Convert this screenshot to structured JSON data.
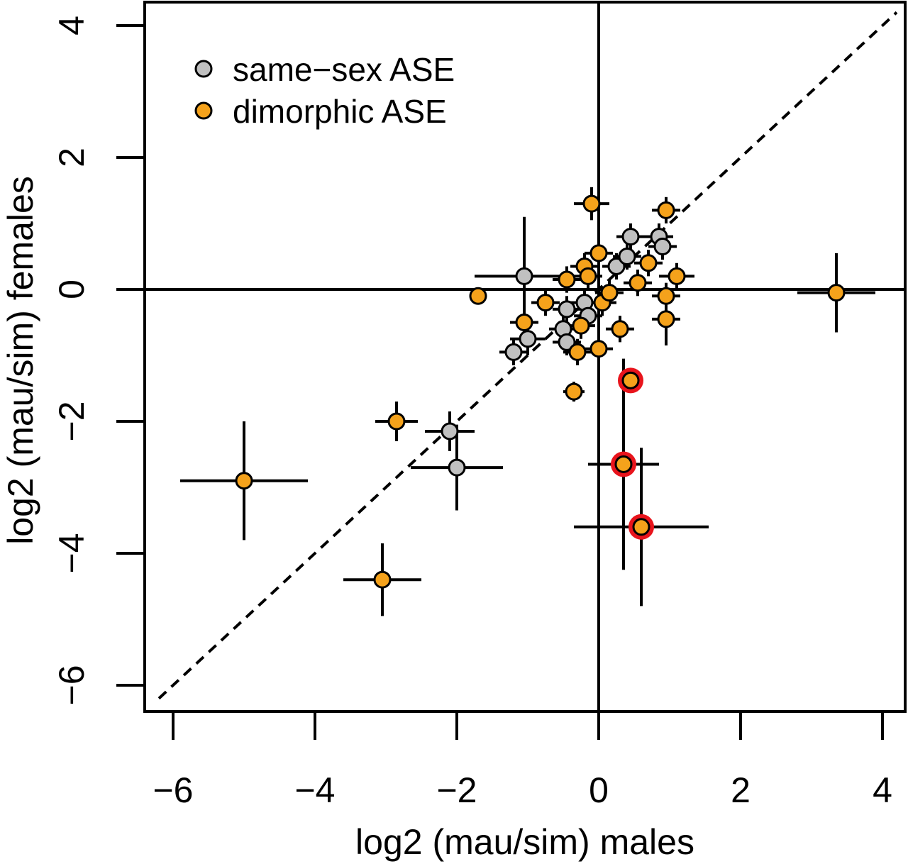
{
  "chart_data": {
    "type": "scatter",
    "title": "",
    "xlabel": "log2 (mau/sim) males",
    "ylabel": "log2 (mau/sim) females",
    "xlim": [
      -6.4,
      4.4
    ],
    "ylim": [
      -6.3,
      4.4
    ],
    "x_ticks": [
      -6,
      -4,
      -2,
      0,
      2,
      4
    ],
    "y_ticks": [
      -6,
      -4,
      -2,
      0,
      2,
      4
    ],
    "x_tick_labels": [
      "−6",
      "−4",
      "−2",
      "0",
      "2",
      "4"
    ],
    "y_tick_labels": [
      "−6",
      "−4",
      "−2",
      "0",
      "2",
      "4"
    ],
    "reference_lines": [
      "x = 0",
      "y = 0",
      "y = x (dashed)"
    ],
    "grid": false,
    "legend_position": "top-left",
    "highlight_color": "#e8141c",
    "series": [
      {
        "name": "same−sex ASE",
        "color": "#c0c0c0",
        "points": [
          {
            "x": -2.1,
            "y": -2.15,
            "xerr": 0.35,
            "yerr": 0.3
          },
          {
            "x": -2.0,
            "y": -2.7,
            "xerr": 0.65,
            "yerr": 0.65
          },
          {
            "x": -1.05,
            "y": 0.2,
            "xerr": 0.7,
            "yerr": 0.9
          },
          {
            "x": -1.0,
            "y": -0.75,
            "xerr": 0.25,
            "yerr": 0.25
          },
          {
            "x": -1.2,
            "y": -0.95,
            "xerr": 0.2,
            "yerr": 0.2
          },
          {
            "x": -0.45,
            "y": -0.3,
            "xerr": 0.2,
            "yerr": 0.2
          },
          {
            "x": -0.5,
            "y": -0.6,
            "xerr": 0.2,
            "yerr": 0.2
          },
          {
            "x": -0.45,
            "y": -0.8,
            "xerr": 0.2,
            "yerr": 0.2
          },
          {
            "x": -0.2,
            "y": -0.2,
            "xerr": 0.2,
            "yerr": 0.2
          },
          {
            "x": -0.15,
            "y": -0.4,
            "xerr": 0.2,
            "yerr": 0.2
          },
          {
            "x": 0.25,
            "y": 0.35,
            "xerr": 0.2,
            "yerr": 0.2
          },
          {
            "x": 0.45,
            "y": 0.8,
            "xerr": 0.2,
            "yerr": 0.2
          },
          {
            "x": 0.4,
            "y": 0.5,
            "xerr": 0.2,
            "yerr": 0.2
          },
          {
            "x": 0.85,
            "y": 0.8,
            "xerr": 0.2,
            "yerr": 0.2
          },
          {
            "x": 0.9,
            "y": 0.65,
            "xerr": 0.2,
            "yerr": 0.2
          }
        ]
      },
      {
        "name": "dimorphic ASE",
        "color": "#f5a21b",
        "points": [
          {
            "x": -5.0,
            "y": -2.9,
            "xerr": 0.9,
            "yerr": 0.9,
            "highlight": false
          },
          {
            "x": -3.05,
            "y": -4.4,
            "xerr": 0.55,
            "yerr": 0.55,
            "highlight": false
          },
          {
            "x": -2.85,
            "y": -2.0,
            "xerr": 0.3,
            "yerr": 0.3,
            "highlight": false
          },
          {
            "x": -1.7,
            "y": -0.1,
            "xerr": 0.1,
            "yerr": 0.1,
            "highlight": false
          },
          {
            "x": -1.05,
            "y": -0.5,
            "xerr": 0.2,
            "yerr": 0.2,
            "highlight": false
          },
          {
            "x": -0.75,
            "y": -0.2,
            "xerr": 0.2,
            "yerr": 0.2,
            "highlight": false
          },
          {
            "x": -0.45,
            "y": 0.15,
            "xerr": 0.2,
            "yerr": 0.2,
            "highlight": false
          },
          {
            "x": -0.2,
            "y": 0.35,
            "xerr": 0.2,
            "yerr": 0.2,
            "highlight": false
          },
          {
            "x": -0.15,
            "y": 0.2,
            "xerr": 0.2,
            "yerr": 0.2,
            "highlight": false
          },
          {
            "x": -0.25,
            "y": -0.55,
            "xerr": 0.2,
            "yerr": 0.2,
            "highlight": false
          },
          {
            "x": -0.3,
            "y": -0.95,
            "xerr": 0.2,
            "yerr": 0.2,
            "highlight": false
          },
          {
            "x": -0.35,
            "y": -1.55,
            "xerr": 0.15,
            "yerr": 0.15,
            "highlight": false
          },
          {
            "x": -0.1,
            "y": 1.3,
            "xerr": 0.25,
            "yerr": 0.25,
            "highlight": false
          },
          {
            "x": 0.0,
            "y": 0.55,
            "xerr": 0.2,
            "yerr": 0.2,
            "highlight": false
          },
          {
            "x": 0.0,
            "y": -0.9,
            "xerr": 0.2,
            "yerr": 0.2,
            "highlight": false
          },
          {
            "x": 0.05,
            "y": -0.2,
            "xerr": 0.2,
            "yerr": 0.2,
            "highlight": false
          },
          {
            "x": 0.15,
            "y": -0.05,
            "xerr": 0.2,
            "yerr": 0.2,
            "highlight": false
          },
          {
            "x": 0.3,
            "y": -0.6,
            "xerr": 0.2,
            "yerr": 0.2,
            "highlight": false
          },
          {
            "x": 0.55,
            "y": 0.1,
            "xerr": 0.2,
            "yerr": 0.2,
            "highlight": false
          },
          {
            "x": 0.7,
            "y": 0.4,
            "xerr": 0.2,
            "yerr": 0.2,
            "highlight": false
          },
          {
            "x": 0.95,
            "y": -0.1,
            "xerr": 0.2,
            "yerr": 0.2,
            "highlight": false
          },
          {
            "x": 0.95,
            "y": -0.45,
            "xerr": 0.2,
            "yerr": 0.4,
            "highlight": false
          },
          {
            "x": 0.95,
            "y": 1.2,
            "xerr": 0.2,
            "yerr": 0.2,
            "highlight": false
          },
          {
            "x": 1.1,
            "y": 0.2,
            "xerr": 0.25,
            "yerr": 0.2,
            "highlight": false
          },
          {
            "x": 3.35,
            "y": -0.05,
            "xerr": 0.55,
            "yerr": 0.6,
            "highlight": false
          },
          {
            "x": 0.45,
            "y": -1.38,
            "xerr": 0.1,
            "yerr": 0.1,
            "highlight": true
          },
          {
            "x": 0.35,
            "y": -2.65,
            "xerr": 0.5,
            "yerr": 1.6,
            "highlight": true
          },
          {
            "x": 0.6,
            "y": -3.6,
            "xerr": 0.95,
            "yerr": 1.2,
            "highlight": true
          }
        ]
      }
    ]
  }
}
